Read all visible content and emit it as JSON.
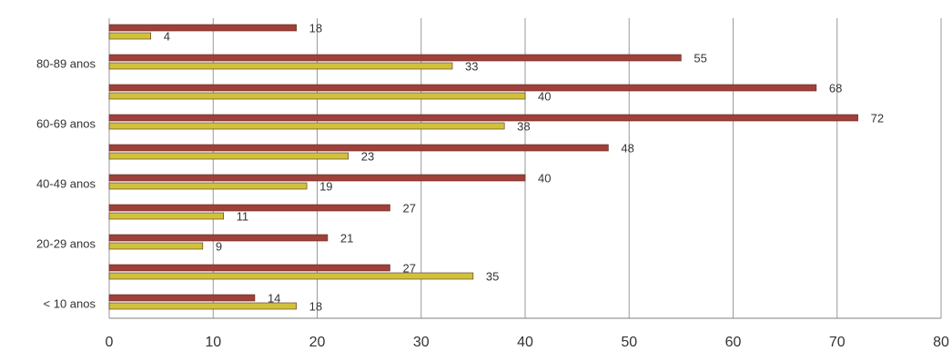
{
  "chart_data": {
    "type": "bar",
    "orientation": "horizontal",
    "categories": [
      "< 10 anos",
      "",
      "20-29 anos",
      "",
      "40-49 anos",
      "",
      "60-69 anos",
      "",
      "80-89 anos",
      ""
    ],
    "series": [
      {
        "values": [
          18,
          35,
          9,
          11,
          19,
          23,
          38,
          40,
          33,
          4
        ],
        "color": "#cfc23a"
      },
      {
        "values": [
          14,
          27,
          21,
          27,
          40,
          48,
          72,
          68,
          55,
          18
        ],
        "color": "#a0403a"
      }
    ],
    "xlim": [
      0,
      80
    ],
    "xticks": [
      0,
      10,
      20,
      30,
      40,
      50,
      60,
      70,
      80
    ],
    "grid": "vertical",
    "legend": "none"
  }
}
